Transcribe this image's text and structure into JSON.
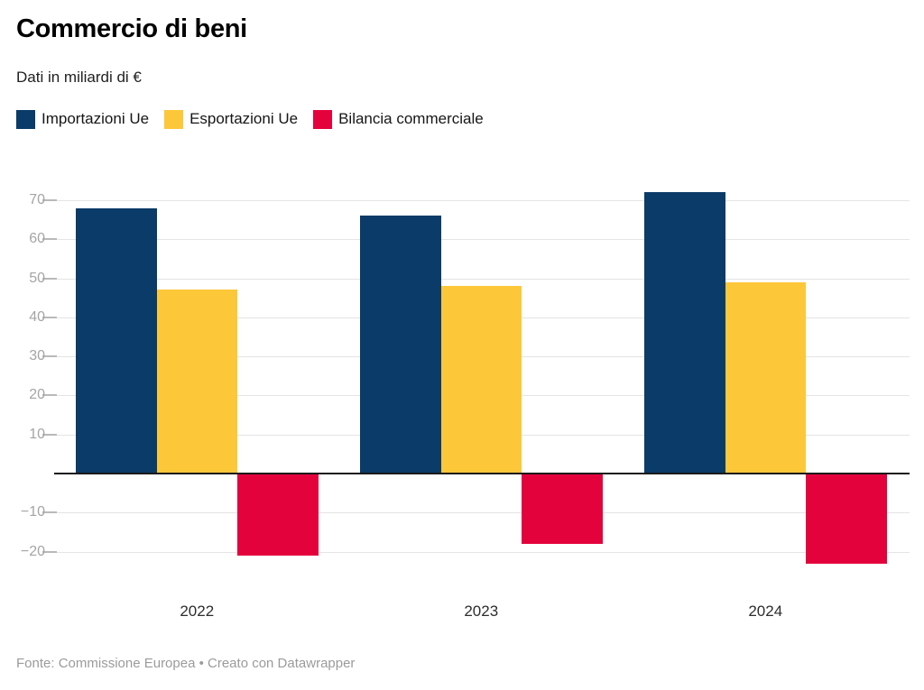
{
  "header": {
    "title": "Commercio di beni",
    "subtitle": "Dati in miliardi di €"
  },
  "footer": {
    "text": "Fonte: Commissione Europea • Creato con Datawrapper"
  },
  "chart_data": {
    "type": "bar",
    "title": "Commercio di beni",
    "subtitle": "Dati in miliardi di €",
    "categories": [
      "2022",
      "2023",
      "2024"
    ],
    "series": [
      {
        "name": "Importazioni Ue",
        "color": "#0b3b68",
        "values": [
          68,
          66,
          72
        ]
      },
      {
        "name": "Esportazioni Ue",
        "color": "#fdc73a",
        "values": [
          47,
          48,
          49
        ]
      },
      {
        "name": "Bilancia commerciale",
        "color": "#e4023d",
        "values": [
          -21,
          -18,
          -23
        ]
      }
    ],
    "xlabel": "",
    "ylabel": "",
    "ylim": [
      -25,
      75
    ],
    "grid": true,
    "legend_position": "top",
    "y_ticks": [
      {
        "value": 70,
        "label": "70"
      },
      {
        "value": 60,
        "label": "60"
      },
      {
        "value": 50,
        "label": "50"
      },
      {
        "value": 40,
        "label": "40"
      },
      {
        "value": 30,
        "label": "30"
      },
      {
        "value": 20,
        "label": "20"
      },
      {
        "value": 10,
        "label": "10"
      },
      {
        "value": -10,
        "label": "−10"
      },
      {
        "value": -20,
        "label": "−20"
      }
    ],
    "baseline": 0
  }
}
